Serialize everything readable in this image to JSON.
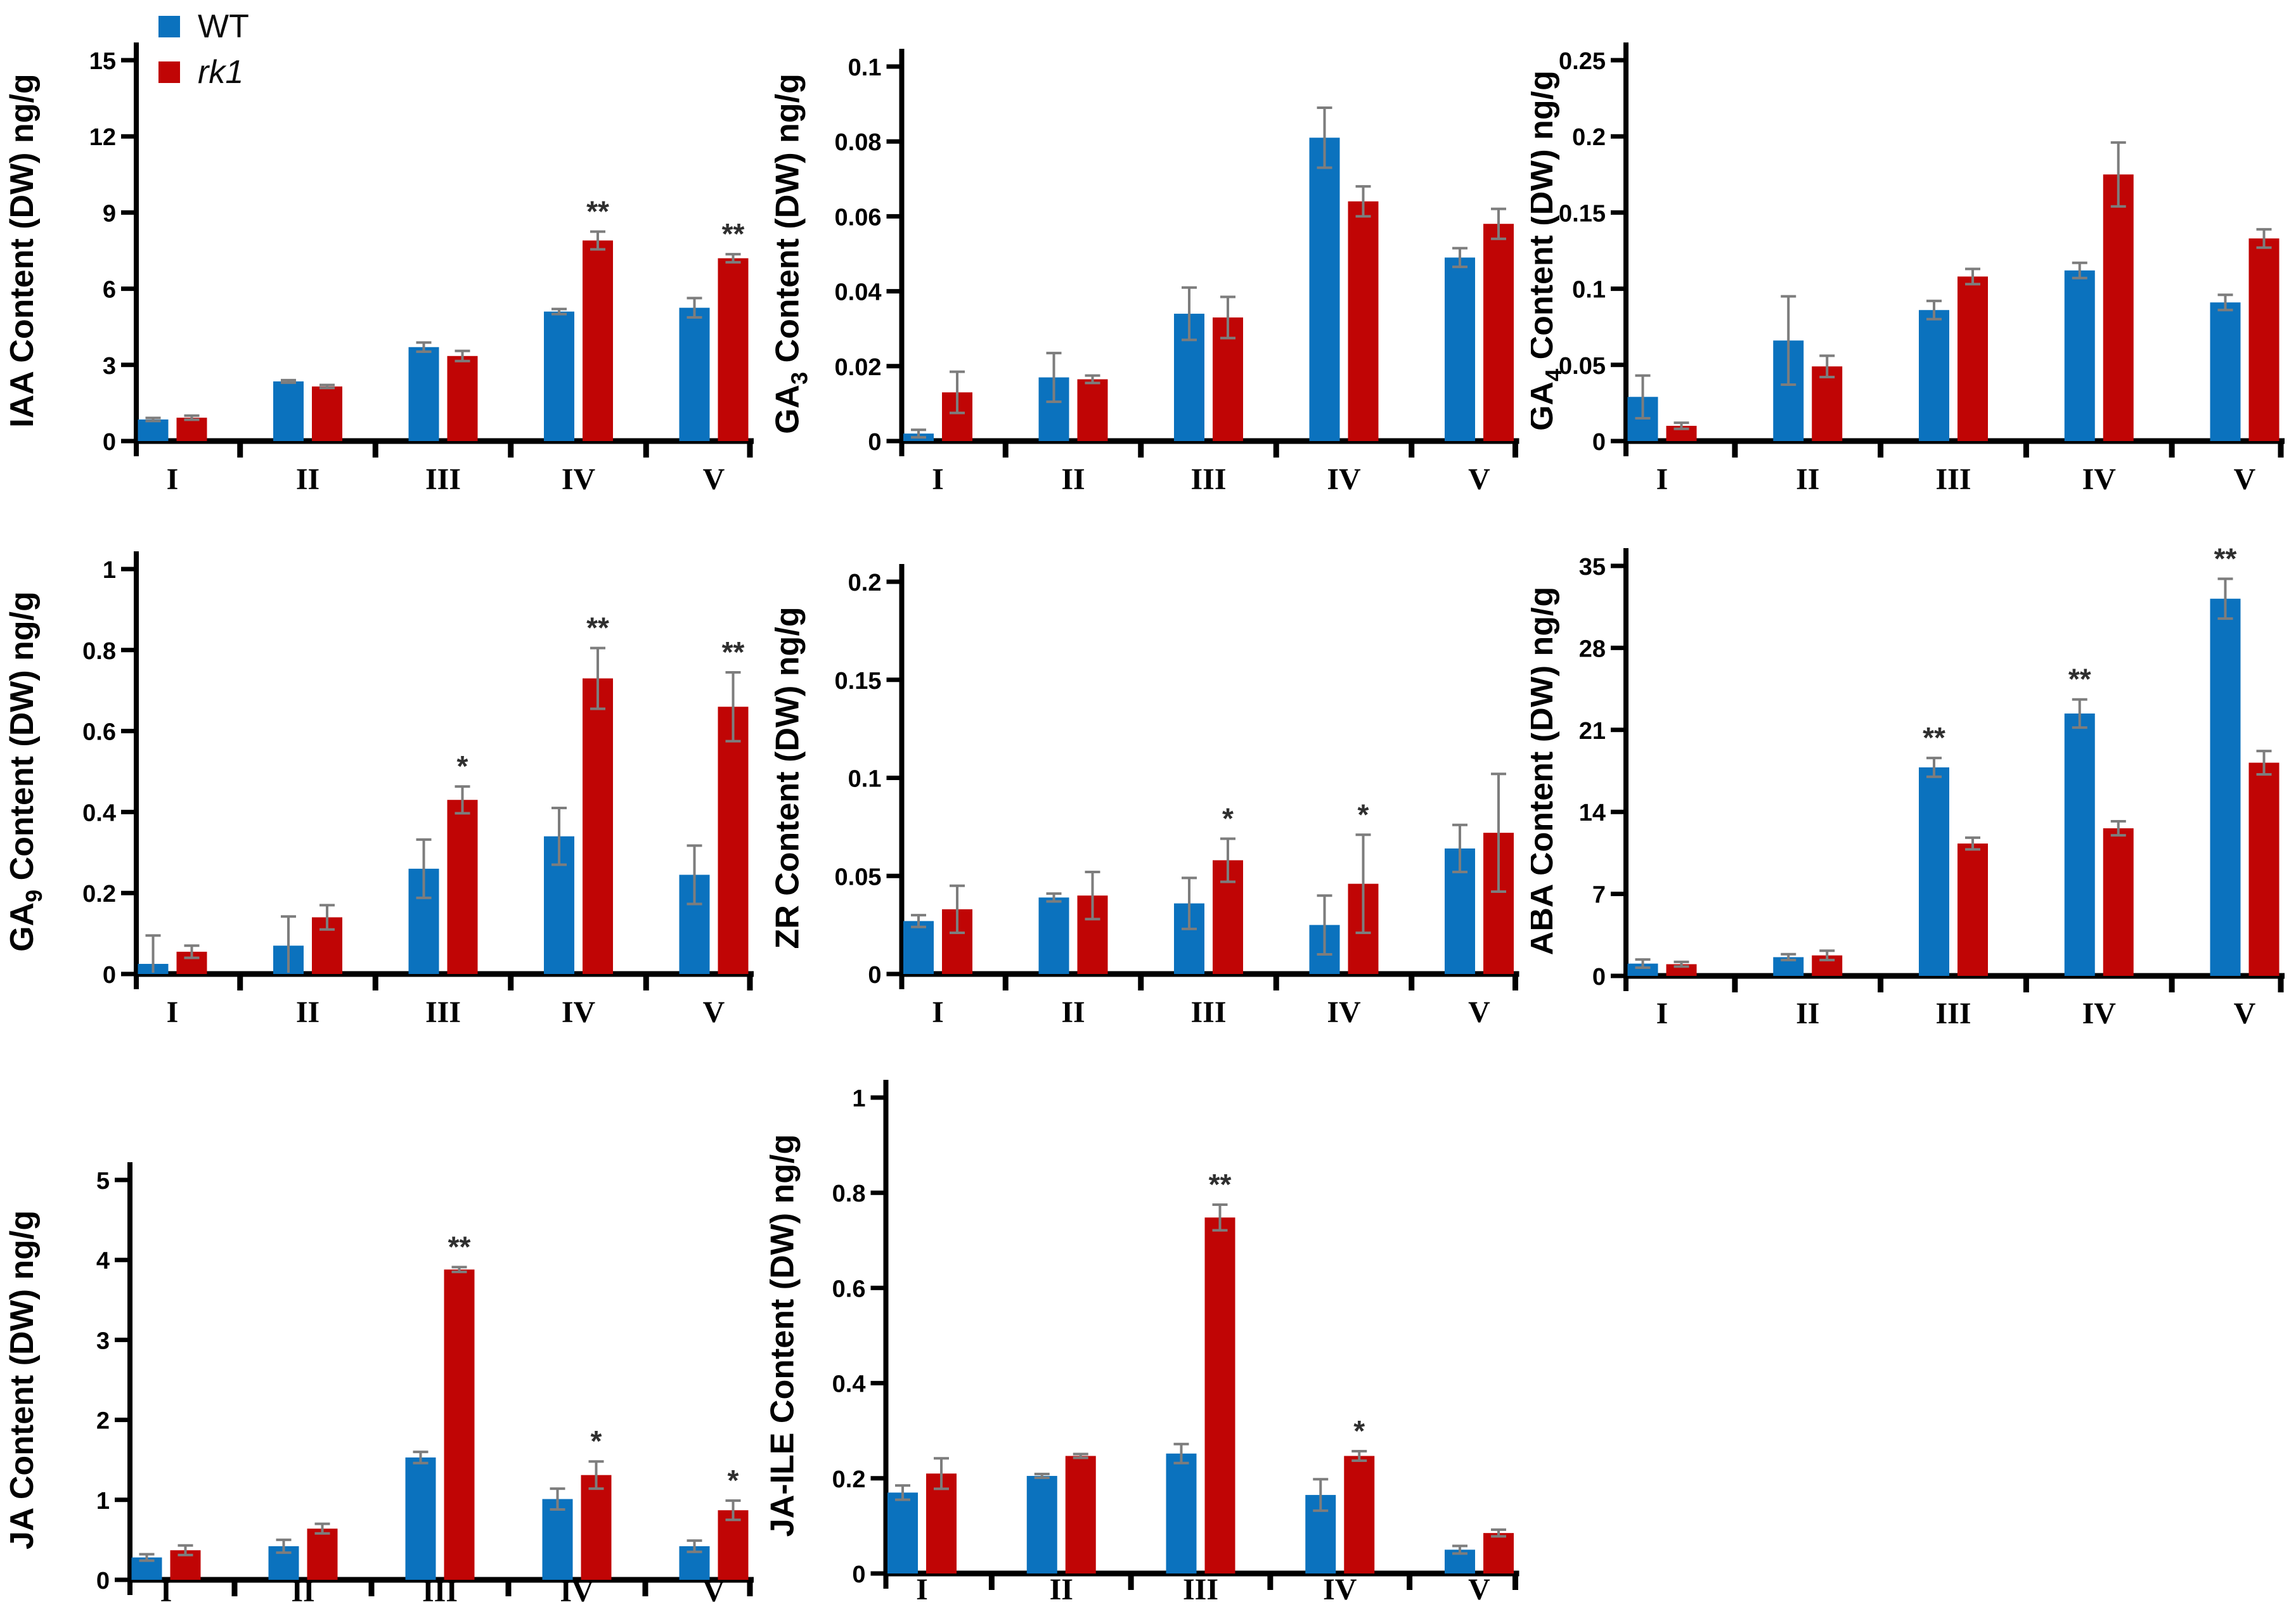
{
  "figure": {
    "background": "#ffffff"
  },
  "legend": {
    "series": [
      {
        "name": "WT",
        "color": "#0B72BE",
        "italic": false
      },
      {
        "name": "rk1",
        "color": "#C00505",
        "italic": true
      }
    ]
  },
  "style": {
    "axis_color": "#000000",
    "error_bar_color": "#7d7d7d",
    "significance_color": "#2f2f2f",
    "tick_label_color": "#000000"
  },
  "categories": [
    "I",
    "II",
    "III",
    "IV",
    "V"
  ],
  "chart_data": [
    {
      "id": "iaa",
      "type": "bar",
      "ylabel": "IAA Content (DW) ng/g",
      "ylabel_parts": [
        {
          "t": "IAA Content (DW) ng/g"
        }
      ],
      "ylim": [
        0,
        15
      ],
      "yticks": [
        0,
        3,
        6,
        9,
        12,
        15
      ],
      "ytick_labels": [
        "0",
        "3",
        "6",
        "9",
        "12",
        "15"
      ],
      "categories": [
        "I",
        "II",
        "III",
        "IV",
        "V"
      ],
      "series": [
        {
          "name": "WT",
          "values": [
            0.85,
            2.35,
            3.7,
            5.1,
            5.25
          ],
          "errors": [
            0.06,
            0.05,
            0.18,
            0.1,
            0.38
          ]
        },
        {
          "name": "rk1",
          "values": [
            0.92,
            2.15,
            3.35,
            7.9,
            7.2
          ],
          "errors": [
            0.08,
            0.06,
            0.2,
            0.35,
            0.16
          ]
        }
      ],
      "significance": [
        {
          "category": "IV",
          "series": "rk1",
          "mark": "**"
        },
        {
          "category": "V",
          "series": "rk1",
          "mark": "**"
        }
      ]
    },
    {
      "id": "ga3",
      "type": "bar",
      "ylabel": "GA3 Content (DW) ng/g",
      "ylabel_parts": [
        {
          "t": "GA"
        },
        {
          "t": "3",
          "sub": true
        },
        {
          "t": " Content (DW) ng/g"
        }
      ],
      "ylim": [
        0,
        0.1
      ],
      "yticks": [
        0,
        0.02,
        0.04,
        0.06,
        0.08,
        0.1
      ],
      "ytick_labels": [
        "0",
        "0.02",
        "0.04",
        "0.06",
        "0.08",
        "0.1"
      ],
      "categories": [
        "I",
        "II",
        "III",
        "IV",
        "V"
      ],
      "series": [
        {
          "name": "WT",
          "values": [
            0.002,
            0.017,
            0.034,
            0.081,
            0.049
          ],
          "errors": [
            0.001,
            0.0065,
            0.007,
            0.008,
            0.0025
          ]
        },
        {
          "name": "rk1",
          "values": [
            0.013,
            0.0165,
            0.033,
            0.064,
            0.058
          ],
          "errors": [
            0.0055,
            0.001,
            0.0055,
            0.004,
            0.004
          ]
        }
      ],
      "significance": []
    },
    {
      "id": "ga4",
      "type": "bar",
      "ylabel": "GA4 Content (DW) ng/g",
      "ylabel_parts": [
        {
          "t": "GA"
        },
        {
          "t": "4",
          "sub": true
        },
        {
          "t": " Content (DW) ng/g"
        }
      ],
      "ylim": [
        0,
        0.25
      ],
      "yticks": [
        0,
        0.05,
        0.1,
        0.15,
        0.2,
        0.25
      ],
      "ytick_labels": [
        "0",
        "0.05",
        "0.1",
        "0.15",
        "0.2",
        "0.25"
      ],
      "categories": [
        "I",
        "II",
        "III",
        "IV",
        "V"
      ],
      "series": [
        {
          "name": "WT",
          "values": [
            0.029,
            0.066,
            0.086,
            0.112,
            0.091
          ],
          "errors": [
            0.014,
            0.029,
            0.006,
            0.005,
            0.005
          ]
        },
        {
          "name": "rk1",
          "values": [
            0.01,
            0.049,
            0.108,
            0.175,
            0.133
          ],
          "errors": [
            0.002,
            0.007,
            0.005,
            0.021,
            0.006
          ]
        }
      ],
      "significance": []
    },
    {
      "id": "ga9",
      "type": "bar",
      "ylabel": "GA9 Content (DW) ng/g",
      "ylabel_parts": [
        {
          "t": "GA"
        },
        {
          "t": "9",
          "sub": true
        },
        {
          "t": " Content (DW) ng/g"
        }
      ],
      "ylim": [
        0,
        1
      ],
      "yticks": [
        0,
        0.2,
        0.4,
        0.6,
        0.8,
        1
      ],
      "ytick_labels": [
        "0",
        "0.2",
        "0.4",
        "0.6",
        "0.8",
        "1"
      ],
      "categories": [
        "I",
        "II",
        "III",
        "IV",
        "V"
      ],
      "series": [
        {
          "name": "WT",
          "values": [
            0.025,
            0.07,
            0.26,
            0.34,
            0.245
          ],
          "errors": [
            0.07,
            0.072,
            0.072,
            0.07,
            0.072
          ]
        },
        {
          "name": "rk1",
          "values": [
            0.055,
            0.14,
            0.43,
            0.73,
            0.66
          ],
          "errors": [
            0.015,
            0.03,
            0.033,
            0.075,
            0.085
          ]
        }
      ],
      "significance": [
        {
          "category": "III",
          "series": "rk1",
          "mark": "*"
        },
        {
          "category": "IV",
          "series": "rk1",
          "mark": "**"
        },
        {
          "category": "V",
          "series": "rk1",
          "mark": "**"
        }
      ]
    },
    {
      "id": "zr",
      "type": "bar",
      "ylabel": "ZR Content (DW) ng/g",
      "ylabel_parts": [
        {
          "t": "ZR Content (DW) ng/g"
        }
      ],
      "ylim": [
        0,
        0.2
      ],
      "yticks": [
        0,
        0.05,
        0.1,
        0.15,
        0.2
      ],
      "ytick_labels": [
        "0",
        "0.05",
        "0.1",
        "0.15",
        "0.2"
      ],
      "categories": [
        "I",
        "II",
        "III",
        "IV",
        "V"
      ],
      "series": [
        {
          "name": "WT",
          "values": [
            0.027,
            0.039,
            0.036,
            0.025,
            0.064
          ],
          "errors": [
            0.003,
            0.002,
            0.013,
            0.015,
            0.012
          ]
        },
        {
          "name": "rk1",
          "values": [
            0.033,
            0.04,
            0.058,
            0.046,
            0.072
          ],
          "errors": [
            0.012,
            0.012,
            0.011,
            0.025,
            0.03
          ]
        }
      ],
      "significance": [
        {
          "category": "III",
          "series": "rk1",
          "mark": "*"
        },
        {
          "category": "IV",
          "series": "rk1",
          "mark": "*"
        }
      ]
    },
    {
      "id": "aba",
      "type": "bar",
      "ylabel": "ABA Content (DW) ng/g",
      "ylabel_parts": [
        {
          "t": "ABA Content (DW) ng/g"
        }
      ],
      "ylim": [
        0,
        35
      ],
      "yticks": [
        0,
        7,
        14,
        21,
        28,
        35
      ],
      "ytick_labels": [
        "0",
        "7",
        "14",
        "21",
        "28",
        "35"
      ],
      "categories": [
        "I",
        "II",
        "III",
        "IV",
        "V"
      ],
      "series": [
        {
          "name": "WT",
          "values": [
            1.05,
            1.6,
            17.8,
            22.4,
            32.2
          ],
          "errors": [
            0.35,
            0.25,
            0.8,
            1.2,
            1.7
          ]
        },
        {
          "name": "rk1",
          "values": [
            1.0,
            1.75,
            11.3,
            12.6,
            18.2
          ],
          "errors": [
            0.2,
            0.4,
            0.5,
            0.6,
            1.0
          ]
        }
      ],
      "significance": [
        {
          "category": "III",
          "series": "WT",
          "mark": "**"
        },
        {
          "category": "IV",
          "series": "WT",
          "mark": "**"
        },
        {
          "category": "V",
          "series": "WT",
          "mark": "**"
        }
      ]
    },
    {
      "id": "ja",
      "type": "bar",
      "ylabel": "JA Content (DW) ng/g",
      "ylabel_parts": [
        {
          "t": "JA Content (DW) ng/g"
        }
      ],
      "ylim": [
        0,
        5
      ],
      "yticks": [
        0,
        1,
        2,
        3,
        4,
        5
      ],
      "ytick_labels": [
        "0",
        "1",
        "2",
        "3",
        "4",
        "5"
      ],
      "categories": [
        "I",
        "II",
        "III",
        "IV",
        "V"
      ],
      "series": [
        {
          "name": "WT",
          "values": [
            0.28,
            0.42,
            1.53,
            1.01,
            0.42
          ],
          "errors": [
            0.04,
            0.08,
            0.07,
            0.13,
            0.07
          ]
        },
        {
          "name": "rk1",
          "values": [
            0.37,
            0.64,
            3.88,
            1.31,
            0.87
          ],
          "errors": [
            0.06,
            0.06,
            0.03,
            0.17,
            0.12
          ]
        }
      ],
      "significance": [
        {
          "category": "III",
          "series": "rk1",
          "mark": "**"
        },
        {
          "category": "IV",
          "series": "rk1",
          "mark": "*"
        },
        {
          "category": "V",
          "series": "rk1",
          "mark": "*"
        }
      ]
    },
    {
      "id": "ja_ile",
      "type": "bar",
      "ylabel": "JA-ILE Content (DW) ng/g",
      "ylabel_parts": [
        {
          "t": "JA-ILE Content (DW) ng/g"
        }
      ],
      "ylim": [
        0,
        1
      ],
      "yticks": [
        0,
        0.2,
        0.4,
        0.6,
        0.8,
        1
      ],
      "ytick_labels": [
        "0",
        "0.2",
        "0.4",
        "0.6",
        "0.8",
        "1"
      ],
      "categories": [
        "I",
        "II",
        "III",
        "IV",
        "V"
      ],
      "series": [
        {
          "name": "WT",
          "values": [
            0.17,
            0.205,
            0.252,
            0.165,
            0.05
          ],
          "errors": [
            0.015,
            0.004,
            0.02,
            0.033,
            0.008
          ]
        },
        {
          "name": "rk1",
          "values": [
            0.21,
            0.247,
            0.748,
            0.247,
            0.085
          ],
          "errors": [
            0.032,
            0.004,
            0.027,
            0.01,
            0.007
          ]
        }
      ],
      "significance": [
        {
          "category": "III",
          "series": "rk1",
          "mark": "**"
        },
        {
          "category": "IV",
          "series": "rk1",
          "mark": "*"
        }
      ]
    }
  ]
}
